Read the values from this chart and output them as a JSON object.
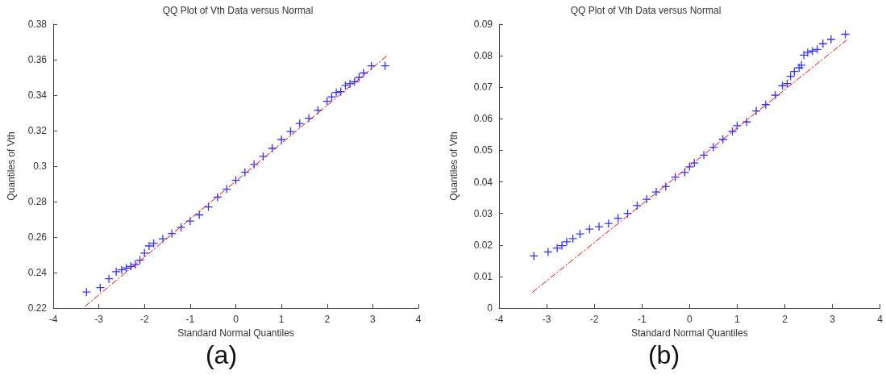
{
  "chart_data": [
    {
      "type": "scatter",
      "title": "QQ Plot of Vth Data versus Normal",
      "xlabel": "Standard Normal Quantiles",
      "ylabel": "Quantiles of Vth",
      "xlim": [
        -4,
        4
      ],
      "xticks": [
        -4,
        -3,
        -2,
        -1,
        0,
        1,
        2,
        3,
        4
      ],
      "ylim": [
        0.22,
        0.38
      ],
      "yticks": [
        0.22,
        0.24,
        0.26,
        0.28,
        0.3,
        0.32,
        0.34,
        0.36,
        0.38
      ],
      "annotations": [
        "(a)"
      ],
      "series": [
        {
          "marker": "cross",
          "color": "#0000ff",
          "x": [
            -3.27,
            -2.97,
            -2.78,
            -2.62,
            -2.5,
            -2.4,
            -2.3,
            -2.2,
            -2.1,
            -2.0,
            -1.9,
            -1.8,
            -1.6,
            -1.4,
            -1.2,
            -1.0,
            -0.8,
            -0.6,
            -0.4,
            -0.2,
            0,
            0.2,
            0.4,
            0.6,
            0.8,
            1.0,
            1.2,
            1.4,
            1.6,
            1.8,
            2.0,
            2.1,
            2.2,
            2.3,
            2.4,
            2.5,
            2.6,
            2.7,
            2.8,
            2.97,
            3.27
          ],
          "values": [
            0.229,
            0.2315,
            0.2365,
            0.2405,
            0.2415,
            0.2425,
            0.2435,
            0.2445,
            0.247,
            0.251,
            0.255,
            0.2565,
            0.259,
            0.262,
            0.2655,
            0.269,
            0.2725,
            0.277,
            0.2825,
            0.287,
            0.292,
            0.2965,
            0.301,
            0.3055,
            0.31,
            0.315,
            0.3195,
            0.324,
            0.327,
            0.3315,
            0.3365,
            0.339,
            0.3415,
            0.342,
            0.3455,
            0.3465,
            0.3475,
            0.35,
            0.3525,
            0.3565,
            0.3565
          ]
        },
        {
          "type": "line",
          "marker": "none",
          "line_style": "dashed",
          "color": "#ff0000",
          "x": [
            -3.3,
            3.3
          ],
          "values": [
            0.221,
            0.362
          ]
        }
      ]
    },
    {
      "type": "scatter",
      "title": "QQ Plot of Vth Data versus Normal",
      "xlabel": "Standard Normal Quantiles",
      "ylabel": "Quantiles of Vth",
      "xlim": [
        -4,
        4
      ],
      "xticks": [
        -4,
        -3,
        -2,
        -1,
        0,
        1,
        2,
        3,
        4
      ],
      "ylim": [
        0,
        0.09
      ],
      "yticks": [
        0,
        0.01,
        0.02,
        0.03,
        0.04,
        0.05,
        0.06,
        0.07,
        0.08,
        0.09
      ],
      "annotations": [
        "(b)"
      ],
      "series": [
        {
          "marker": "cross",
          "color": "#0000ff",
          "x": [
            -3.27,
            -2.97,
            -2.78,
            -2.68,
            -2.58,
            -2.45,
            -2.3,
            -2.1,
            -1.9,
            -1.7,
            -1.5,
            -1.3,
            -1.1,
            -0.9,
            -0.7,
            -0.5,
            -0.3,
            -0.1,
            0,
            0.1,
            0.3,
            0.5,
            0.7,
            0.9,
            1.0,
            1.2,
            1.4,
            1.6,
            1.8,
            1.95,
            2.05,
            2.12,
            2.2,
            2.3,
            2.35,
            2.4,
            2.48,
            2.58,
            2.68,
            2.8,
            2.97,
            3.27
          ],
          "values": [
            0.0165,
            0.0178,
            0.019,
            0.0198,
            0.021,
            0.022,
            0.0235,
            0.025,
            0.0258,
            0.0268,
            0.0285,
            0.03,
            0.0325,
            0.0345,
            0.0368,
            0.0385,
            0.0415,
            0.043,
            0.0448,
            0.046,
            0.0485,
            0.051,
            0.0535,
            0.056,
            0.0578,
            0.059,
            0.0625,
            0.0645,
            0.0675,
            0.0705,
            0.0712,
            0.0735,
            0.075,
            0.0762,
            0.077,
            0.0802,
            0.081,
            0.0815,
            0.082,
            0.0838,
            0.0852,
            0.0868
          ]
        },
        {
          "type": "line",
          "marker": "none",
          "line_style": "dashed",
          "color": "#ff0000",
          "x": [
            -3.3,
            3.3
          ],
          "values": [
            0.005,
            0.085
          ]
        }
      ]
    }
  ]
}
